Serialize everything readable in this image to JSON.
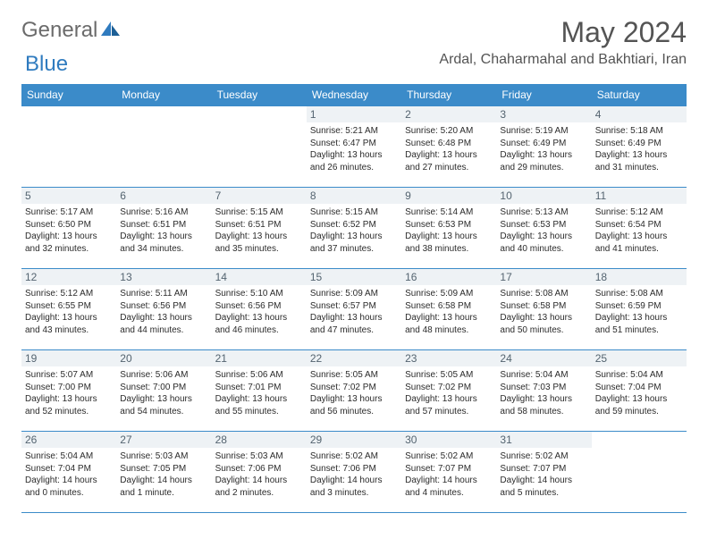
{
  "brand": {
    "general": "General",
    "blue": "Blue"
  },
  "title": "May 2024",
  "location": "Ardal, Chaharmahal and Bakhtiari, Iran",
  "colors": {
    "header_bg": "#3b8bc9",
    "header_text": "#ffffff",
    "daynum_bg": "#eef2f5",
    "daynum_text": "#546470",
    "border": "#3b8bc9",
    "title_text": "#545454",
    "logo_general": "#6b6b6b",
    "logo_blue": "#2f7bbf",
    "body_text": "#2b2b2b"
  },
  "weekdays": [
    "Sunday",
    "Monday",
    "Tuesday",
    "Wednesday",
    "Thursday",
    "Friday",
    "Saturday"
  ],
  "weeks": [
    [
      null,
      null,
      null,
      {
        "n": "1",
        "sr": "Sunrise: 5:21 AM",
        "ss": "Sunset: 6:47 PM",
        "d1": "Daylight: 13 hours",
        "d2": "and 26 minutes."
      },
      {
        "n": "2",
        "sr": "Sunrise: 5:20 AM",
        "ss": "Sunset: 6:48 PM",
        "d1": "Daylight: 13 hours",
        "d2": "and 27 minutes."
      },
      {
        "n": "3",
        "sr": "Sunrise: 5:19 AM",
        "ss": "Sunset: 6:49 PM",
        "d1": "Daylight: 13 hours",
        "d2": "and 29 minutes."
      },
      {
        "n": "4",
        "sr": "Sunrise: 5:18 AM",
        "ss": "Sunset: 6:49 PM",
        "d1": "Daylight: 13 hours",
        "d2": "and 31 minutes."
      }
    ],
    [
      {
        "n": "5",
        "sr": "Sunrise: 5:17 AM",
        "ss": "Sunset: 6:50 PM",
        "d1": "Daylight: 13 hours",
        "d2": "and 32 minutes."
      },
      {
        "n": "6",
        "sr": "Sunrise: 5:16 AM",
        "ss": "Sunset: 6:51 PM",
        "d1": "Daylight: 13 hours",
        "d2": "and 34 minutes."
      },
      {
        "n": "7",
        "sr": "Sunrise: 5:15 AM",
        "ss": "Sunset: 6:51 PM",
        "d1": "Daylight: 13 hours",
        "d2": "and 35 minutes."
      },
      {
        "n": "8",
        "sr": "Sunrise: 5:15 AM",
        "ss": "Sunset: 6:52 PM",
        "d1": "Daylight: 13 hours",
        "d2": "and 37 minutes."
      },
      {
        "n": "9",
        "sr": "Sunrise: 5:14 AM",
        "ss": "Sunset: 6:53 PM",
        "d1": "Daylight: 13 hours",
        "d2": "and 38 minutes."
      },
      {
        "n": "10",
        "sr": "Sunrise: 5:13 AM",
        "ss": "Sunset: 6:53 PM",
        "d1": "Daylight: 13 hours",
        "d2": "and 40 minutes."
      },
      {
        "n": "11",
        "sr": "Sunrise: 5:12 AM",
        "ss": "Sunset: 6:54 PM",
        "d1": "Daylight: 13 hours",
        "d2": "and 41 minutes."
      }
    ],
    [
      {
        "n": "12",
        "sr": "Sunrise: 5:12 AM",
        "ss": "Sunset: 6:55 PM",
        "d1": "Daylight: 13 hours",
        "d2": "and 43 minutes."
      },
      {
        "n": "13",
        "sr": "Sunrise: 5:11 AM",
        "ss": "Sunset: 6:56 PM",
        "d1": "Daylight: 13 hours",
        "d2": "and 44 minutes."
      },
      {
        "n": "14",
        "sr": "Sunrise: 5:10 AM",
        "ss": "Sunset: 6:56 PM",
        "d1": "Daylight: 13 hours",
        "d2": "and 46 minutes."
      },
      {
        "n": "15",
        "sr": "Sunrise: 5:09 AM",
        "ss": "Sunset: 6:57 PM",
        "d1": "Daylight: 13 hours",
        "d2": "and 47 minutes."
      },
      {
        "n": "16",
        "sr": "Sunrise: 5:09 AM",
        "ss": "Sunset: 6:58 PM",
        "d1": "Daylight: 13 hours",
        "d2": "and 48 minutes."
      },
      {
        "n": "17",
        "sr": "Sunrise: 5:08 AM",
        "ss": "Sunset: 6:58 PM",
        "d1": "Daylight: 13 hours",
        "d2": "and 50 minutes."
      },
      {
        "n": "18",
        "sr": "Sunrise: 5:08 AM",
        "ss": "Sunset: 6:59 PM",
        "d1": "Daylight: 13 hours",
        "d2": "and 51 minutes."
      }
    ],
    [
      {
        "n": "19",
        "sr": "Sunrise: 5:07 AM",
        "ss": "Sunset: 7:00 PM",
        "d1": "Daylight: 13 hours",
        "d2": "and 52 minutes."
      },
      {
        "n": "20",
        "sr": "Sunrise: 5:06 AM",
        "ss": "Sunset: 7:00 PM",
        "d1": "Daylight: 13 hours",
        "d2": "and 54 minutes."
      },
      {
        "n": "21",
        "sr": "Sunrise: 5:06 AM",
        "ss": "Sunset: 7:01 PM",
        "d1": "Daylight: 13 hours",
        "d2": "and 55 minutes."
      },
      {
        "n": "22",
        "sr": "Sunrise: 5:05 AM",
        "ss": "Sunset: 7:02 PM",
        "d1": "Daylight: 13 hours",
        "d2": "and 56 minutes."
      },
      {
        "n": "23",
        "sr": "Sunrise: 5:05 AM",
        "ss": "Sunset: 7:02 PM",
        "d1": "Daylight: 13 hours",
        "d2": "and 57 minutes."
      },
      {
        "n": "24",
        "sr": "Sunrise: 5:04 AM",
        "ss": "Sunset: 7:03 PM",
        "d1": "Daylight: 13 hours",
        "d2": "and 58 minutes."
      },
      {
        "n": "25",
        "sr": "Sunrise: 5:04 AM",
        "ss": "Sunset: 7:04 PM",
        "d1": "Daylight: 13 hours",
        "d2": "and 59 minutes."
      }
    ],
    [
      {
        "n": "26",
        "sr": "Sunrise: 5:04 AM",
        "ss": "Sunset: 7:04 PM",
        "d1": "Daylight: 14 hours",
        "d2": "and 0 minutes."
      },
      {
        "n": "27",
        "sr": "Sunrise: 5:03 AM",
        "ss": "Sunset: 7:05 PM",
        "d1": "Daylight: 14 hours",
        "d2": "and 1 minute."
      },
      {
        "n": "28",
        "sr": "Sunrise: 5:03 AM",
        "ss": "Sunset: 7:06 PM",
        "d1": "Daylight: 14 hours",
        "d2": "and 2 minutes."
      },
      {
        "n": "29",
        "sr": "Sunrise: 5:02 AM",
        "ss": "Sunset: 7:06 PM",
        "d1": "Daylight: 14 hours",
        "d2": "and 3 minutes."
      },
      {
        "n": "30",
        "sr": "Sunrise: 5:02 AM",
        "ss": "Sunset: 7:07 PM",
        "d1": "Daylight: 14 hours",
        "d2": "and 4 minutes."
      },
      {
        "n": "31",
        "sr": "Sunrise: 5:02 AM",
        "ss": "Sunset: 7:07 PM",
        "d1": "Daylight: 14 hours",
        "d2": "and 5 minutes."
      },
      null
    ]
  ]
}
